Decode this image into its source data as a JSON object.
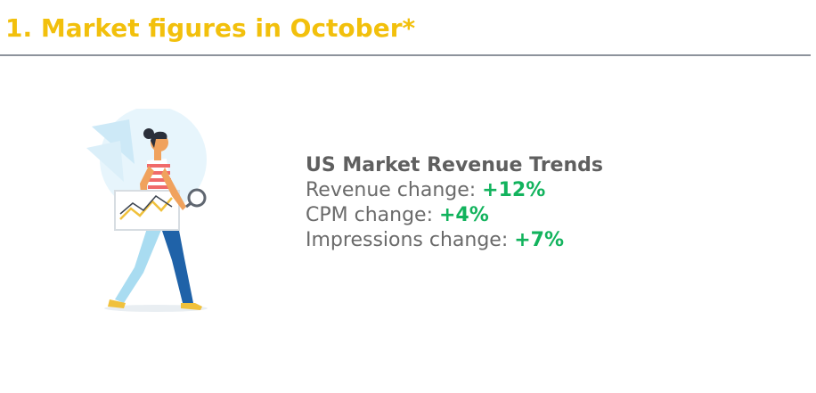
{
  "header": {
    "title": "1. Market figures in October*",
    "title_color": "#f2c00c",
    "rule_color": "#8d939c"
  },
  "illustration": {
    "icon": "woman-walking-with-chart-and-magnifier-illustration"
  },
  "summary": {
    "heading": "US Market Revenue Trends",
    "value_color": "#12b35d",
    "items": [
      {
        "label": "Revenue change: ",
        "value": "+12%"
      },
      {
        "label": "CPM change: ",
        "value": "+4%"
      },
      {
        "label": "Impressions change: ",
        "value": "+7%"
      }
    ]
  }
}
